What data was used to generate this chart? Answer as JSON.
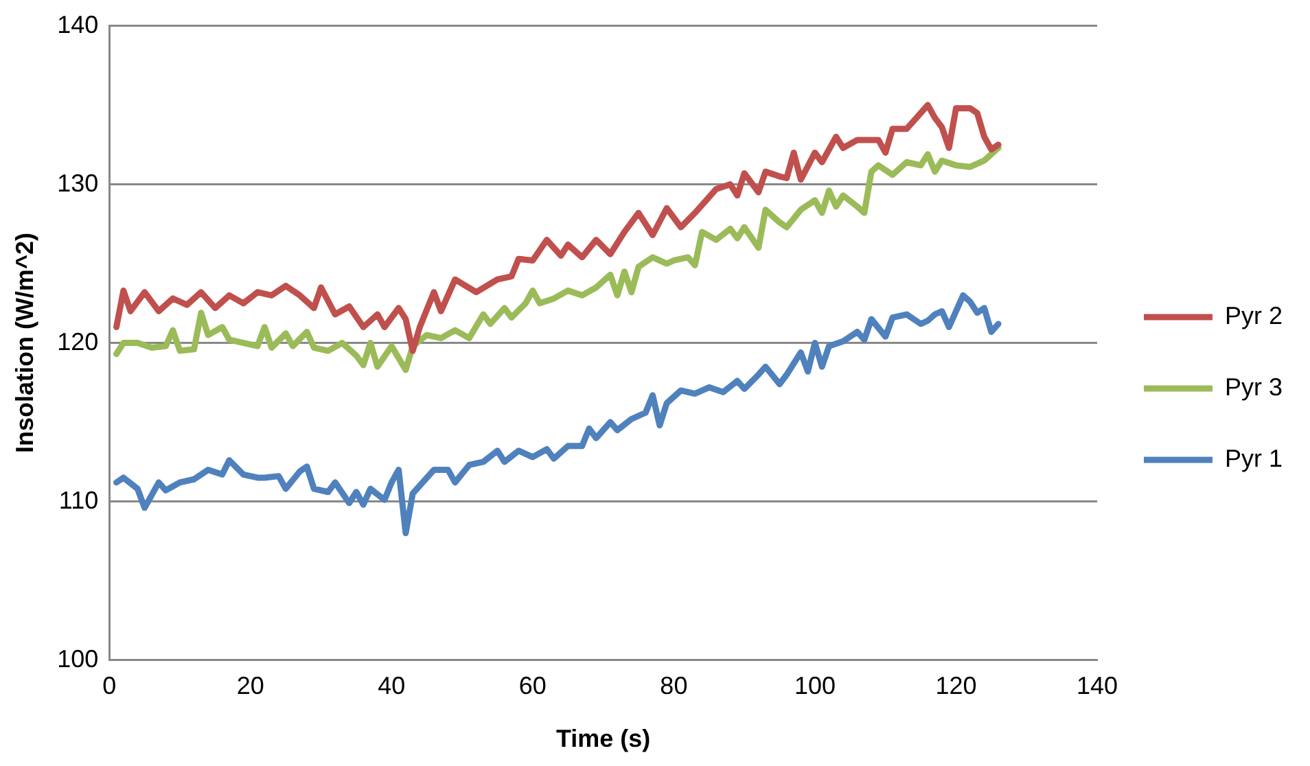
{
  "chart_data": {
    "type": "line",
    "xlabel": "Time (s)",
    "ylabel": "Insolation (W/m^2)",
    "xlim": [
      0,
      140
    ],
    "xticks": [
      0,
      20,
      40,
      60,
      80,
      100,
      120,
      140
    ],
    "ylim": [
      100,
      140
    ],
    "yticks": [
      100,
      110,
      120,
      130,
      140
    ],
    "grid": "y",
    "legend": "right",
    "marker": "none",
    "line_style": "solid",
    "series": [
      {
        "name": "Pyr 2",
        "color": "#c0504d",
        "x": [
          1,
          2,
          3,
          5,
          7,
          9,
          11,
          13,
          15,
          17,
          19,
          21,
          23,
          25,
          27,
          29,
          30,
          32,
          34,
          36,
          38,
          39,
          41,
          42,
          43,
          44,
          46,
          47,
          49,
          52,
          55,
          57,
          58,
          60,
          62,
          64,
          65,
          67,
          69,
          71,
          73,
          75,
          77,
          79,
          81,
          83,
          86,
          88,
          89,
          90,
          92,
          93,
          95,
          96,
          97,
          98,
          100,
          101,
          103,
          104,
          106,
          109,
          110,
          111,
          113,
          114,
          116,
          117,
          118,
          119,
          120,
          122,
          123,
          124,
          125,
          126
        ],
        "values": [
          121,
          123.3,
          122,
          123.2,
          122,
          122.8,
          122.4,
          123.2,
          122.2,
          123,
          122.5,
          123.2,
          123,
          123.6,
          123,
          122.2,
          123.5,
          121.8,
          122.3,
          121,
          121.8,
          121,
          122.2,
          121.5,
          119.5,
          121,
          123.2,
          122,
          124,
          123.2,
          124,
          124.2,
          125.3,
          125.2,
          126.5,
          125.5,
          126.2,
          125.4,
          126.5,
          125.6,
          127,
          128.2,
          126.8,
          128.5,
          127.3,
          128.2,
          129.7,
          130,
          129.3,
          130.7,
          129.5,
          130.8,
          130.5,
          130.4,
          132,
          130.3,
          132,
          131.4,
          133,
          132.3,
          132.8,
          132.8,
          132,
          133.5,
          133.5,
          134,
          135,
          134.2,
          133.6,
          132.3,
          134.8,
          134.8,
          134.5,
          133,
          132.2,
          132.5
        ]
      },
      {
        "name": "Pyr 3",
        "color": "#9bbb59",
        "x": [
          1,
          2,
          4,
          6,
          8,
          9,
          10,
          12,
          13,
          14,
          16,
          17,
          19,
          21,
          22,
          23,
          25,
          26,
          28,
          29,
          31,
          33,
          35,
          36,
          37,
          38,
          40,
          42,
          43,
          45,
          47,
          49,
          51,
          53,
          54,
          56,
          57,
          59,
          60,
          61,
          63,
          65,
          67,
          69,
          71,
          72,
          73,
          74,
          75,
          77,
          79,
          80,
          82,
          83,
          84,
          86,
          88,
          89,
          90,
          92,
          93,
          95,
          96,
          98,
          100,
          101,
          102,
          103,
          104,
          106,
          107,
          108,
          109,
          111,
          113,
          115,
          116,
          117,
          118,
          120,
          122,
          124,
          126
        ],
        "values": [
          119.3,
          120,
          120,
          119.7,
          119.8,
          120.8,
          119.5,
          119.6,
          121.9,
          120.5,
          121,
          120.2,
          120,
          119.8,
          121,
          119.7,
          120.6,
          119.8,
          120.7,
          119.7,
          119.5,
          120,
          119.2,
          118.6,
          120,
          118.5,
          119.8,
          118.3,
          119.8,
          120.5,
          120.3,
          120.8,
          120.3,
          121.8,
          121.2,
          122.2,
          121.6,
          122.5,
          123.3,
          122.5,
          122.8,
          123.3,
          123,
          123.5,
          124.3,
          123,
          124.5,
          123.2,
          124.8,
          125.4,
          125,
          125.2,
          125.4,
          124.9,
          127,
          126.5,
          127.2,
          126.6,
          127.3,
          126,
          128.4,
          127.6,
          127.3,
          128.4,
          129,
          128.2,
          129.6,
          128.6,
          129.3,
          128.6,
          128.2,
          130.8,
          131.2,
          130.6,
          131.4,
          131.2,
          131.9,
          130.8,
          131.5,
          131.2,
          131.1,
          131.5,
          132.3
        ]
      },
      {
        "name": "Pyr 1",
        "color": "#4f81bd",
        "x": [
          1,
          2,
          4,
          5,
          7,
          8,
          10,
          12,
          14,
          16,
          17,
          19,
          21,
          22,
          24,
          25,
          27,
          28,
          29,
          31,
          32,
          34,
          35,
          36,
          37,
          39,
          40,
          41,
          42,
          43,
          44,
          46,
          48,
          49,
          51,
          53,
          55,
          56,
          58,
          60,
          62,
          63,
          65,
          67,
          68,
          69,
          71,
          72,
          74,
          76,
          77,
          78,
          79,
          81,
          83,
          85,
          87,
          89,
          90,
          92,
          93,
          95,
          96,
          98,
          99,
          100,
          101,
          102,
          104,
          106,
          107,
          108,
          110,
          111,
          113,
          115,
          116,
          117,
          118,
          119,
          121,
          122,
          123,
          124,
          125,
          126
        ],
        "values": [
          111.2,
          111.5,
          110.8,
          109.6,
          111.2,
          110.7,
          111.2,
          111.4,
          112,
          111.7,
          112.6,
          111.7,
          111.5,
          111.5,
          111.6,
          110.8,
          111.9,
          112.2,
          110.8,
          110.6,
          111.2,
          109.9,
          110.6,
          109.8,
          110.8,
          110.1,
          111.2,
          112,
          108,
          110.5,
          111,
          112,
          112,
          111.2,
          112.3,
          112.5,
          113.2,
          112.5,
          113.2,
          112.8,
          113.3,
          112.7,
          113.5,
          113.5,
          114.6,
          114,
          115,
          114.5,
          115.2,
          115.6,
          116.7,
          114.8,
          116.2,
          117,
          116.8,
          117.2,
          116.9,
          117.6,
          117.1,
          118,
          118.5,
          117.4,
          118,
          119.4,
          118.2,
          120,
          118.5,
          119.8,
          120.1,
          120.7,
          120.2,
          121.5,
          120.4,
          121.6,
          121.8,
          121.2,
          121.4,
          121.8,
          122,
          121,
          123,
          122.6,
          121.9,
          122.2,
          120.7,
          121.2
        ]
      }
    ]
  }
}
